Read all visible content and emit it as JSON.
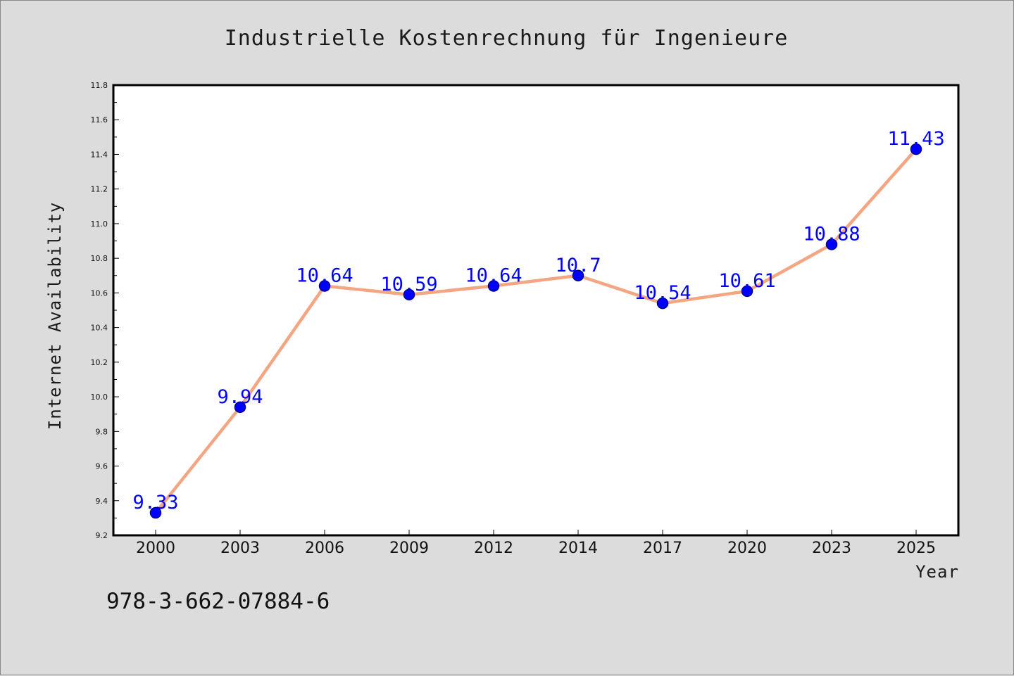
{
  "chart_data": {
    "type": "line",
    "title": "Industrielle Kostenrechnung für Ingenieure",
    "xlabel": "Year",
    "ylabel": "Internet Availability",
    "categories": [
      "2000",
      "2003",
      "2006",
      "2009",
      "2012",
      "2014",
      "2017",
      "2020",
      "2023",
      "2025"
    ],
    "series": [
      {
        "values": [
          9.33,
          9.94,
          10.64,
          10.59,
          10.64,
          10.7,
          10.54,
          10.61,
          10.88,
          11.43
        ],
        "data_labels": [
          "9.33",
          "9.94",
          "10.64",
          "10.59",
          "10.64",
          "10.7",
          "10.54",
          "10.61",
          "10.88",
          "11.43"
        ]
      }
    ],
    "ylim": [
      9.2,
      11.8
    ],
    "yticks": [
      "9.2",
      "9.4",
      "9.6",
      "9.8",
      "10.0",
      "10.2",
      "10.4",
      "10.6",
      "10.8",
      "11.0",
      "11.2",
      "11.4",
      "11.6",
      "11.8"
    ],
    "grid": false,
    "legend": "none",
    "colors": {
      "line": "#f4a582",
      "marker": "#0000ff",
      "marker_edge": "#00008b",
      "data_label": "#0000ff",
      "background": "#dcdcdc",
      "plot_background": "#ffffff"
    }
  },
  "footer": {
    "isbn": "978-3-662-07884-6"
  }
}
